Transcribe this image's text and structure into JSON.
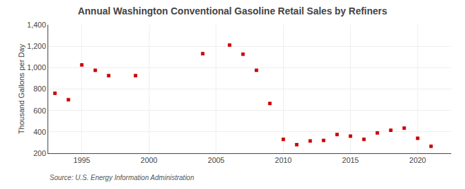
{
  "chart_data": {
    "type": "scatter",
    "title": "Annual Washington Conventional Gasoline Retail Sales by Refiners",
    "ylabel": "Thousand Gallons per Day",
    "annotations": [
      "Source: U.S. Energy Information Administration"
    ],
    "x": [
      1993,
      1994,
      1995,
      1996,
      1997,
      1999,
      2004,
      2006,
      2007,
      2008,
      2009,
      2010,
      2011,
      2012,
      2013,
      2014,
      2015,
      2016,
      2017,
      2018,
      2019,
      2020,
      2021
    ],
    "values": [
      760,
      700,
      1025,
      975,
      925,
      925,
      1130,
      1210,
      1125,
      975,
      665,
      330,
      280,
      315,
      320,
      375,
      360,
      330,
      390,
      415,
      435,
      340,
      265
    ],
    "color": "#cc0000",
    "marker": "square",
    "xlim": [
      1992.5,
      2022.5
    ],
    "xticks": [
      1995,
      2000,
      2005,
      2010,
      2015,
      2020
    ],
    "ylim": [
      200,
      1400
    ],
    "yticks": [
      200,
      400,
      600,
      800,
      {
        "value": 1000,
        "label": "1,000"
      },
      {
        "value": 1200,
        "label": "1,200"
      },
      {
        "value": 1400,
        "label": "1,400"
      }
    ],
    "grid": true
  }
}
